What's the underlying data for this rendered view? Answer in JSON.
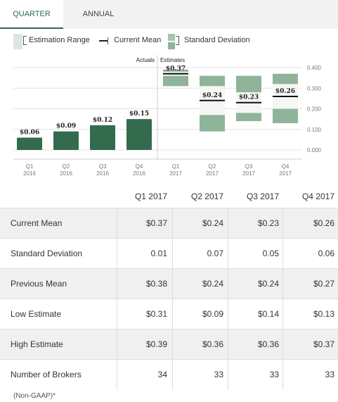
{
  "tabs": [
    {
      "label": "QUARTER",
      "active": true
    },
    {
      "label": "ANNUAL",
      "active": false
    }
  ],
  "legend": {
    "range": "Estimation Range",
    "mean": "Current Mean",
    "sd": "Standard Deviation"
  },
  "colors": {
    "actual_bar": "#346b4f",
    "estimate_range": "#dfe6df",
    "sd_band": "#8fb49a",
    "mean_line": "#111111",
    "accent": "#2e6b4e"
  },
  "chart_data": {
    "type": "bar",
    "section_labels": {
      "actuals": "Actuals",
      "estimates": "Estimates"
    },
    "ylim": [
      0,
      0.4
    ],
    "yticks": [
      "0.000",
      "0.100",
      "0.200",
      "0.300",
      "0.400"
    ],
    "actuals": [
      {
        "quarter": "Q1",
        "year": "2016",
        "value": 0.06,
        "label": "$0.06"
      },
      {
        "quarter": "Q2",
        "year": "2016",
        "value": 0.09,
        "label": "$0.09"
      },
      {
        "quarter": "Q3",
        "year": "2016",
        "value": 0.12,
        "label": "$0.12"
      },
      {
        "quarter": "Q4",
        "year": "2016",
        "value": 0.15,
        "label": "$0.15"
      }
    ],
    "estimates": [
      {
        "quarter": "Q1",
        "year": "2017",
        "mean": 0.37,
        "sd": 0.01,
        "low": 0.31,
        "high": 0.39,
        "label": "$0.37"
      },
      {
        "quarter": "Q2",
        "year": "2017",
        "mean": 0.24,
        "sd": 0.07,
        "low": 0.09,
        "high": 0.36,
        "label": "$0.24"
      },
      {
        "quarter": "Q3",
        "year": "2017",
        "mean": 0.23,
        "sd": 0.05,
        "low": 0.14,
        "high": 0.36,
        "label": "$0.23"
      },
      {
        "quarter": "Q4",
        "year": "2017",
        "mean": 0.26,
        "sd": 0.06,
        "low": 0.13,
        "high": 0.37,
        "label": "$0.26"
      }
    ]
  },
  "table": {
    "headers": [
      "Q1 2017",
      "Q2 2017",
      "Q3 2017",
      "Q4 2017"
    ],
    "rows": [
      {
        "label": "Current Mean",
        "values": [
          "$0.37",
          "$0.24",
          "$0.23",
          "$0.26"
        ]
      },
      {
        "label": "Standard Deviation",
        "values": [
          "0.01",
          "0.07",
          "0.05",
          "0.06"
        ]
      },
      {
        "label": "Previous Mean",
        "values": [
          "$0.38",
          "$0.24",
          "$0.24",
          "$0.27"
        ]
      },
      {
        "label": "Low Estimate",
        "values": [
          "$0.31",
          "$0.09",
          "$0.14",
          "$0.13"
        ]
      },
      {
        "label": "High Estimate",
        "values": [
          "$0.39",
          "$0.36",
          "$0.36",
          "$0.37"
        ]
      },
      {
        "label": "Number of Brokers",
        "values": [
          "34",
          "33",
          "33",
          "33"
        ]
      }
    ]
  },
  "footnote": "(Non-GAAP)*"
}
